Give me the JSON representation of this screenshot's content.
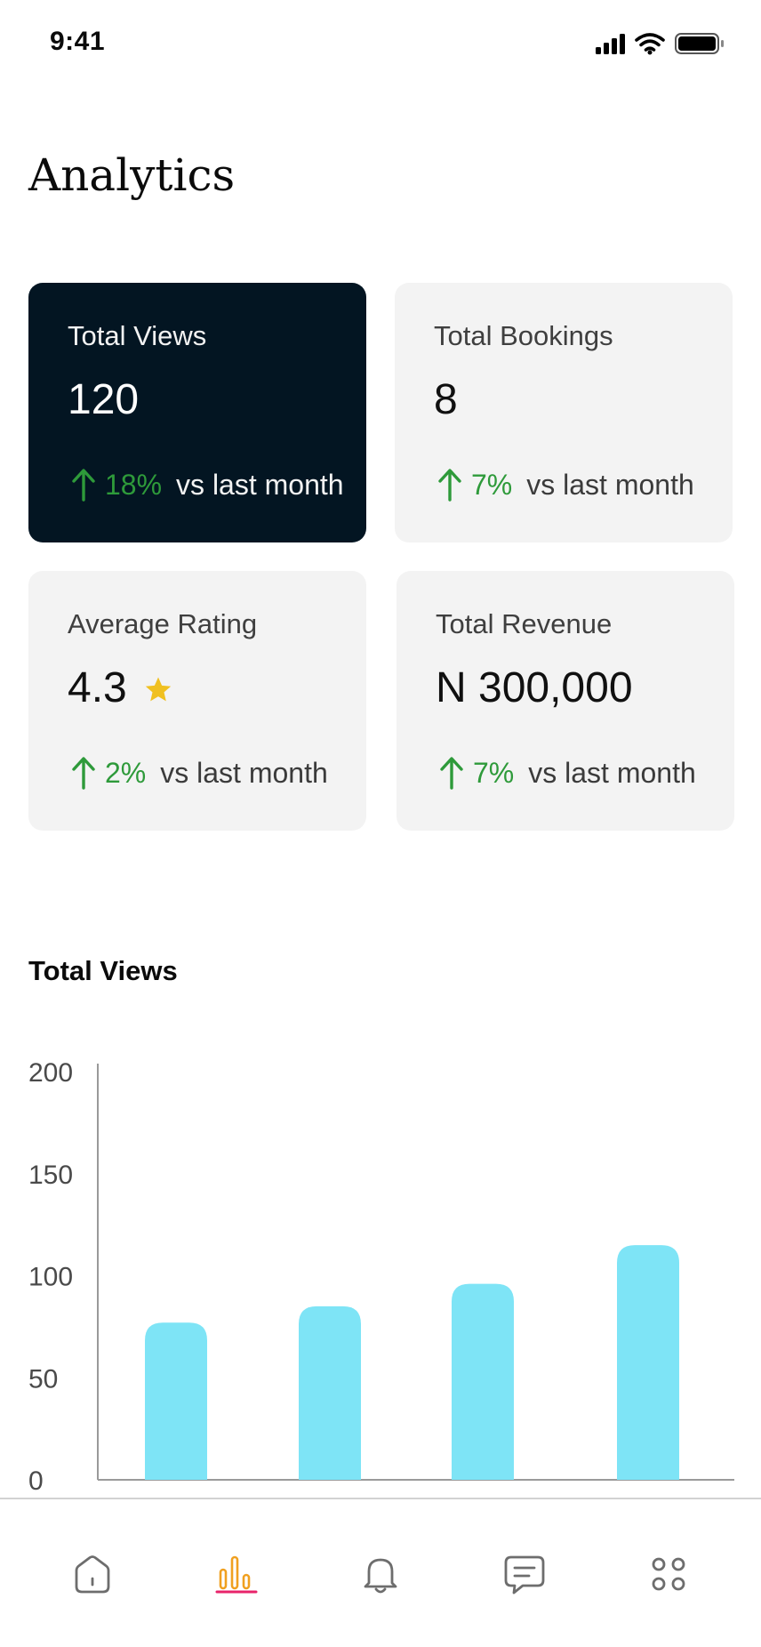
{
  "status_bar": {
    "time": "9:41"
  },
  "header": {
    "title": "Analytics"
  },
  "cards": [
    {
      "label": "Total Views",
      "value": "120",
      "change_pct": "18%",
      "change_text": "vs last month"
    },
    {
      "label": "Total Bookings",
      "value": "8",
      "change_pct": "7%",
      "change_text": "vs last month"
    },
    {
      "label": "Average Rating",
      "value": "4.3",
      "change_pct": "2%",
      "change_text": "vs last month",
      "icon": "star-icon"
    },
    {
      "label": "Total Revenue",
      "value": "N 300,000",
      "change_pct": "7%",
      "change_text": "vs last month"
    }
  ],
  "colors": {
    "dark_card": "#031522",
    "light_card": "#f3f3f3",
    "positive": "#2e9a3a",
    "bar": "#7ee4f6",
    "star": "#f0c020",
    "active_nav": "#e8236a"
  },
  "chart_data": {
    "type": "bar",
    "title": "Total Views",
    "y_ticks": [
      "200",
      "150",
      "100",
      "50",
      "0"
    ],
    "ylim": [
      0,
      200
    ],
    "values": [
      77,
      85,
      96,
      115
    ],
    "xlabel": "",
    "ylabel": "",
    "grid": false
  },
  "bottom_nav": [
    {
      "icon": "home-icon",
      "active": false
    },
    {
      "icon": "analytics-icon",
      "active": true
    },
    {
      "icon": "bell-icon",
      "active": false
    },
    {
      "icon": "chat-icon",
      "active": false
    },
    {
      "icon": "more-apps-icon",
      "active": false
    }
  ]
}
